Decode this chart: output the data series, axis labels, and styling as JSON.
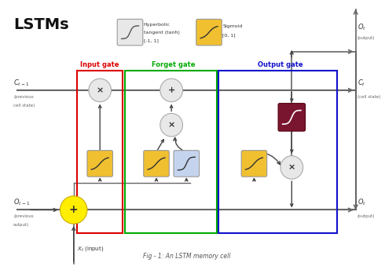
{
  "title": "LSTMs",
  "bg_color": "#ffffff",
  "gate_labels": {
    "input": "Input gate",
    "forget": "Forget gate",
    "output": "Output gate"
  },
  "gate_colors": {
    "input": "#dd0000",
    "forget": "#00aa00",
    "output": "#1111cc"
  },
  "sigmoid_color": "#f0c030",
  "tanh_light_color": "#c5d4ee",
  "tanh_dark_color": "#7a1530",
  "circle_color": "#e8e8e8",
  "plus_circle_color": "#ffee00",
  "arrow_color": "#444444",
  "line_color": "#666666",
  "caption": "Fig - 1: An LSTM memory cell"
}
